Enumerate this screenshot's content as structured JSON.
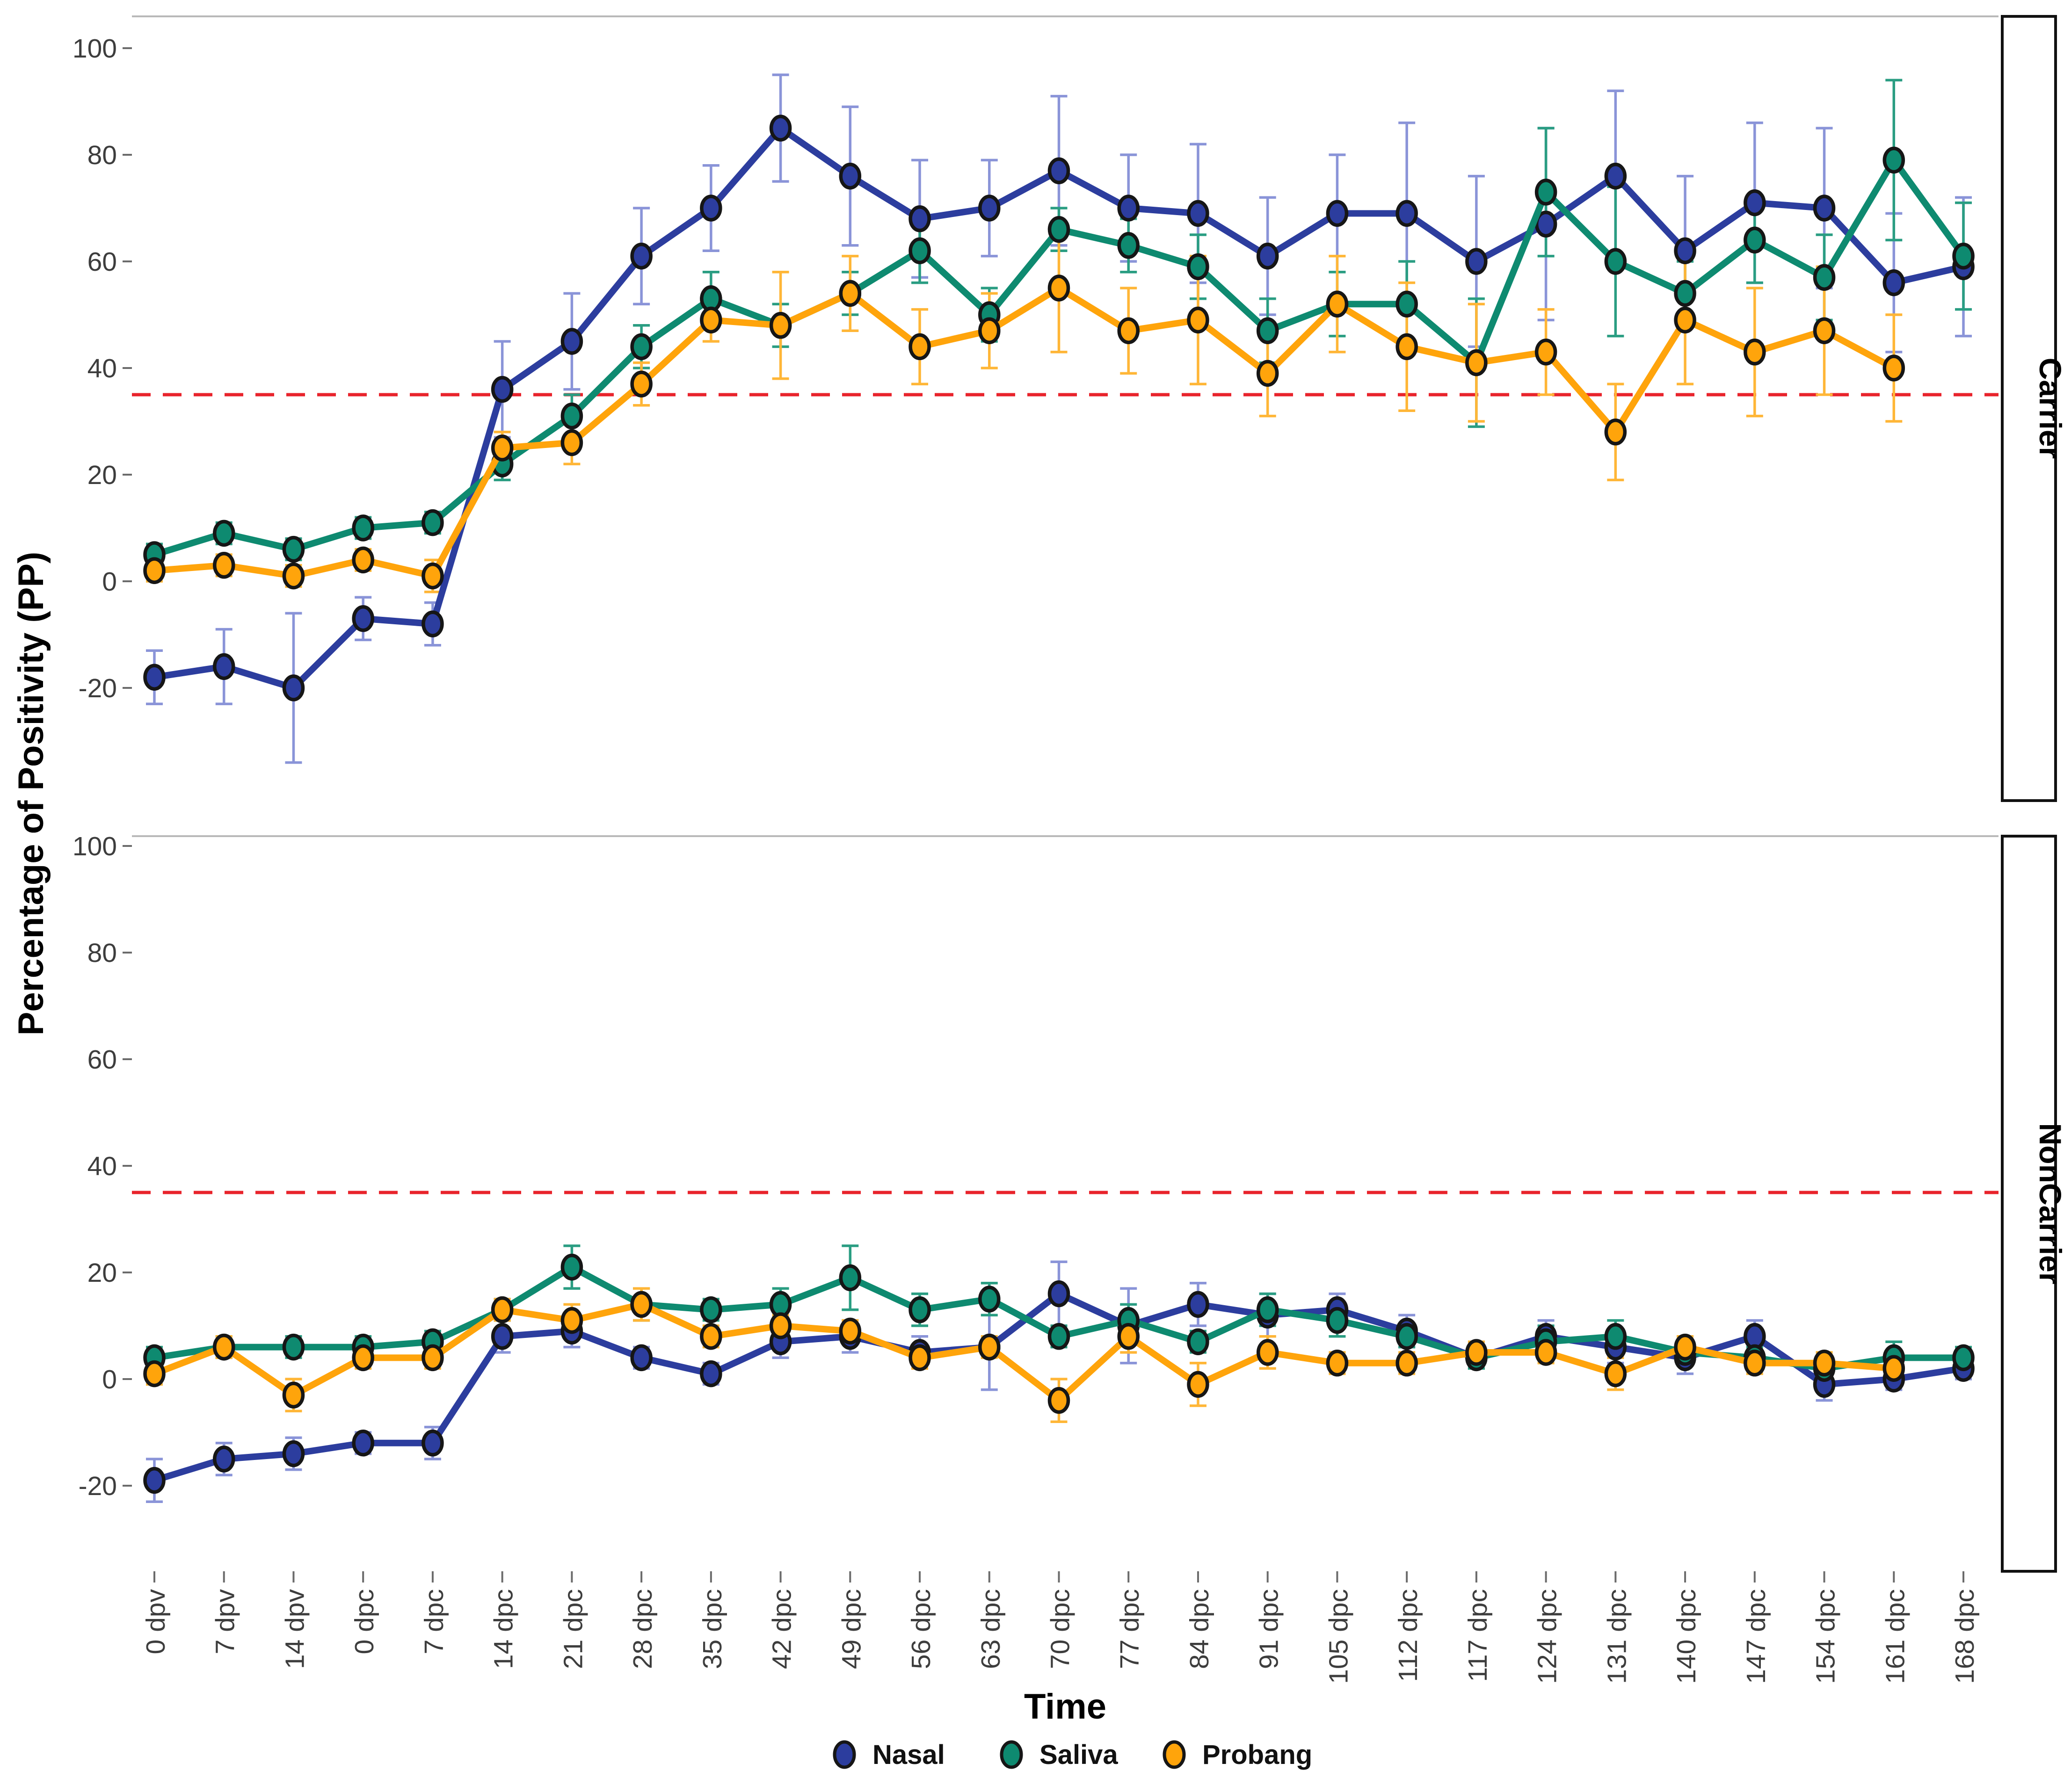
{
  "figure": {
    "y_axis_title": "Percentage of Positivity (PP)",
    "x_axis_title": "Time"
  },
  "chart_data": {
    "type": "line",
    "facets": "rows",
    "grid": false,
    "categories": [
      "0 dpv",
      "7 dpv",
      "14 dpv",
      "0 dpc",
      "7 dpc",
      "14 dpc",
      "21 dpc",
      "28 dpc",
      "35 dpc",
      "42 dpc",
      "49 dpc",
      "56 dpc",
      "63 dpc",
      "70 dpc",
      "77 dpc",
      "84 dpc",
      "91 dpc",
      "105 dpc",
      "112 dpc",
      "117 dpc",
      "124 dpc",
      "131 dpc",
      "140 dpc",
      "147 dpc",
      "154 dpc",
      "161 dpc",
      "168 dpc"
    ],
    "xlabel": "Time",
    "ylabel": "Percentage of Positivity (PP)",
    "ylim": [
      -40,
      100
    ],
    "y_ticks": [
      100,
      80,
      60,
      40,
      20,
      0,
      -20
    ],
    "threshold": 35,
    "threshold_color": "#e8232b",
    "marker_outline": "#161616",
    "tick_color": "#6b6b6b",
    "panel_border_color": "#b9b9b9",
    "strip_border_color": "#111111",
    "panels": [
      {
        "label": "Carrier",
        "series": [
          {
            "name": "Nasal",
            "color": "#2c3d9e",
            "error_color": "#8a94d8",
            "values": [
              -18,
              -16,
              -20,
              -7,
              -8,
              36,
              45,
              61,
              70,
              85,
              76,
              68,
              70,
              77,
              70,
              69,
              61,
              69,
              69,
              60,
              67,
              76,
              62,
              71,
              70,
              56,
              59
            ],
            "errors": [
              5,
              7,
              14,
              4,
              4,
              9,
              9,
              9,
              8,
              10,
              13,
              11,
              9,
              14,
              10,
              13,
              11,
              11,
              17,
              16,
              18,
              16,
              14,
              15,
              15,
              13,
              13
            ]
          },
          {
            "name": "Saliva",
            "color": "#0e8a70",
            "error_color": "#2a9d82",
            "values": [
              5,
              9,
              6,
              10,
              11,
              22,
              31,
              44,
              53,
              48,
              54,
              62,
              50,
              66,
              63,
              59,
              47,
              52,
              52,
              41,
              73,
              60,
              54,
              64,
              57,
              79,
              61
            ],
            "errors": [
              2,
              2,
              2,
              2,
              2,
              3,
              4,
              4,
              5,
              4,
              4,
              6,
              5,
              4,
              5,
              6,
              6,
              6,
              8,
              12,
              12,
              14,
              6,
              8,
              8,
              15,
              10
            ]
          },
          {
            "name": "Probang",
            "color": "#ffa40b",
            "error_color": "#ffb637",
            "values": [
              2,
              3,
              1,
              4,
              1,
              25,
              26,
              37,
              49,
              48,
              54,
              44,
              47,
              55,
              47,
              49,
              39,
              52,
              44,
              41,
              43,
              28,
              49,
              43,
              47,
              40,
              null
            ],
            "errors": [
              2,
              2,
              2,
              2,
              3,
              3,
              4,
              4,
              4,
              10,
              7,
              7,
              7,
              12,
              8,
              12,
              8,
              9,
              12,
              11,
              8,
              9,
              12,
              12,
              12,
              10,
              null
            ]
          }
        ]
      },
      {
        "label": "NonCarrier",
        "series": [
          {
            "name": "Nasal",
            "color": "#2c3d9e",
            "error_color": "#8a94d8",
            "values": [
              -19,
              -15,
              -14,
              -12,
              -12,
              8,
              9,
              4,
              1,
              7,
              8,
              5,
              6,
              16,
              10,
              14,
              12,
              13,
              9,
              4,
              8,
              6,
              4,
              8,
              -1,
              0,
              2
            ],
            "errors": [
              4,
              3,
              3,
              2,
              3,
              3,
              3,
              2,
              2,
              3,
              3,
              3,
              8,
              6,
              7,
              4,
              4,
              3,
              3,
              2,
              3,
              3,
              3,
              3,
              3,
              2,
              2
            ]
          },
          {
            "name": "Saliva",
            "color": "#0e8a70",
            "error_color": "#2a9d82",
            "values": [
              4,
              6,
              6,
              6,
              7,
              13,
              21,
              14,
              13,
              14,
              19,
              13,
              15,
              8,
              11,
              7,
              13,
              11,
              8,
              4,
              7,
              8,
              5,
              4,
              2,
              4,
              4
            ],
            "errors": [
              2,
              2,
              2,
              2,
              2,
              2,
              4,
              3,
              2,
              3,
              6,
              3,
              3,
              2,
              3,
              2,
              3,
              3,
              2,
              2,
              3,
              3,
              2,
              2,
              2,
              3,
              2
            ]
          },
          {
            "name": "Probang",
            "color": "#ffa40b",
            "error_color": "#ffb637",
            "values": [
              1,
              6,
              -3,
              4,
              4,
              13,
              11,
              14,
              8,
              10,
              9,
              4,
              6,
              -4,
              8,
              -1,
              5,
              3,
              3,
              5,
              5,
              1,
              6,
              3,
              3,
              2,
              null
            ],
            "errors": [
              2,
              2,
              3,
              2,
              2,
              2,
              3,
              3,
              2,
              2,
              2,
              2,
              2,
              4,
              3,
              4,
              3,
              2,
              2,
              2,
              2,
              3,
              2,
              2,
              2,
              2,
              null
            ]
          }
        ]
      }
    ],
    "legend": {
      "position": "bottom",
      "items": [
        {
          "label": "Nasal",
          "color": "#2c3d9e"
        },
        {
          "label": "Saliva",
          "color": "#0e8a70"
        },
        {
          "label": "Probang",
          "color": "#ffa40b"
        }
      ]
    }
  }
}
